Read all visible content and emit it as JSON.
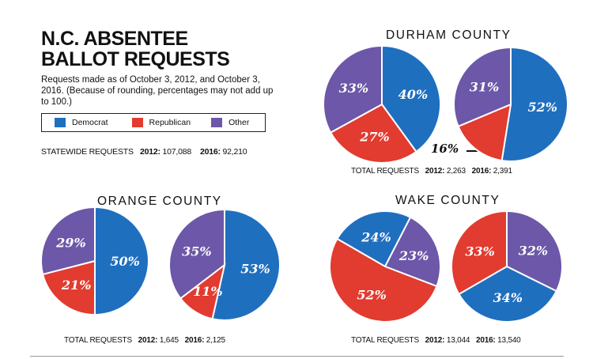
{
  "title_line1": "N.C. ABSENTEE",
  "title_line2": "BALLOT REQUESTS",
  "subtitle": "Requests made as of October 3, 2012, and October 3, 2016. (Because of rounding, percentages may not add up to 100.)",
  "legend": {
    "democrat": "Democrat",
    "republican": "Republican",
    "other": "Other"
  },
  "colors": {
    "democrat": "#1f6fbf",
    "republican": "#e23b2f",
    "other": "#6c57a8"
  },
  "statewide": {
    "label": "STATEWIDE REQUESTS",
    "y2012_label": "2012:",
    "y2012_value": "107,088",
    "y2016_label": "2016:",
    "y2016_value": "92,210"
  },
  "chart_data": [
    {
      "type": "pie",
      "title": "DURHAM COUNTY",
      "pies": [
        {
          "year": "2012",
          "slices": [
            {
              "party": "Democrat",
              "value": 40
            },
            {
              "party": "Republican",
              "value": 27
            },
            {
              "party": "Other",
              "value": 33
            }
          ]
        },
        {
          "year": "2016",
          "slices": [
            {
              "party": "Democrat",
              "value": 52
            },
            {
              "party": "Republican",
              "value": 16
            },
            {
              "party": "Other",
              "value": 31
            }
          ]
        }
      ],
      "totals": {
        "label": "TOTAL REQUESTS",
        "y2012": "2,263",
        "y2016": "2,391"
      }
    },
    {
      "type": "pie",
      "title": "ORANGE COUNTY",
      "pies": [
        {
          "year": "2012",
          "slices": [
            {
              "party": "Democrat",
              "value": 50
            },
            {
              "party": "Republican",
              "value": 21
            },
            {
              "party": "Other",
              "value": 29
            }
          ]
        },
        {
          "year": "2016",
          "slices": [
            {
              "party": "Democrat",
              "value": 53
            },
            {
              "party": "Republican",
              "value": 11
            },
            {
              "party": "Other",
              "value": 35
            }
          ]
        }
      ],
      "totals": {
        "label": "TOTAL REQUESTS",
        "y2012": "1,645",
        "y2016": "2,125"
      }
    },
    {
      "type": "pie",
      "title": "WAKE COUNTY",
      "pies": [
        {
          "year": "2012",
          "slices": [
            {
              "party": "Democrat",
              "value": 24
            },
            {
              "party": "Republican",
              "value": 52
            },
            {
              "party": "Other",
              "value": 23
            }
          ]
        },
        {
          "year": "2016",
          "slices": [
            {
              "party": "Democrat",
              "value": 34
            },
            {
              "party": "Republican",
              "value": 33
            },
            {
              "party": "Other",
              "value": 32
            }
          ]
        }
      ],
      "totals": {
        "label": "TOTAL REQUESTS",
        "y2012": "13,044",
        "y2016": "13,540"
      }
    }
  ]
}
